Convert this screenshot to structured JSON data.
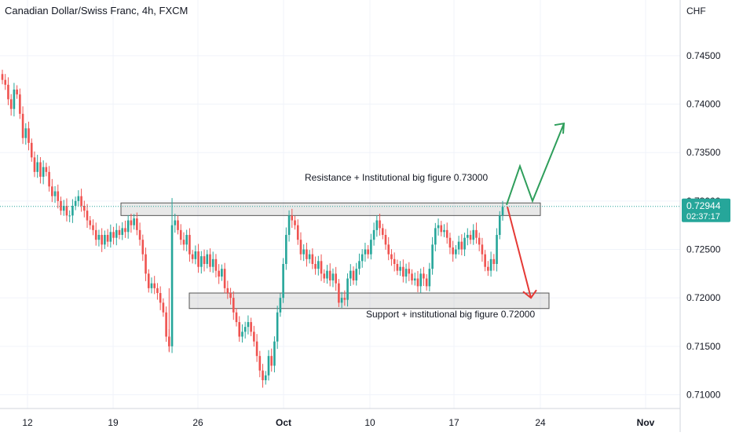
{
  "chart_data": {
    "type": "candlestick",
    "title": "Canadian Dollar/Swiss Franc, 4h, FXCM",
    "currency_label": "CHF",
    "y_ticks": [
      "0.74500",
      "0.74000",
      "0.73500",
      "0.73000",
      "0.72500",
      "0.72000",
      "0.71500",
      "0.71000"
    ],
    "y_tick_values": [
      0.745,
      0.74,
      0.735,
      0.73,
      0.725,
      0.72,
      0.715,
      0.71
    ],
    "x_ticks": [
      "12",
      "19",
      "26",
      "Oct",
      "10",
      "17",
      "24",
      "Nov"
    ],
    "ylim": [
      0.7085,
      0.7488
    ],
    "current_price": "0.72944",
    "countdown": "02:37:17",
    "annotations": {
      "resistance": "Resistance + Institutional big figure 0.73000",
      "support": "Support + institutional big figure 0.72000"
    },
    "zones": {
      "resistance": [
        0.7285,
        0.7298
      ],
      "support": [
        0.7189,
        0.7205
      ]
    },
    "scenario_up": [
      0.7296,
      0.7336,
      0.73,
      0.738
    ],
    "scenario_down": [
      0.7294,
      0.72
    ],
    "colors": {
      "up": "#26a69a",
      "down": "#ef5350",
      "grid": "#f0f3fa",
      "price_line": "#26a69a",
      "text": "#131722"
    },
    "series": [
      0.7425,
      0.742,
      0.7405,
      0.7395,
      0.7415,
      0.741,
      0.739,
      0.7365,
      0.7375,
      0.736,
      0.7345,
      0.733,
      0.734,
      0.7325,
      0.7335,
      0.733,
      0.7315,
      0.7305,
      0.731,
      0.73,
      0.729,
      0.7295,
      0.7285,
      0.7285,
      0.7295,
      0.73,
      0.7305,
      0.7295,
      0.729,
      0.728,
      0.7275,
      0.727,
      0.726,
      0.7265,
      0.7255,
      0.7265,
      0.7258,
      0.7268,
      0.7262,
      0.727,
      0.7265,
      0.7272,
      0.7268,
      0.728,
      0.7275,
      0.7282,
      0.727,
      0.726,
      0.7245,
      0.7225,
      0.721,
      0.7215,
      0.721,
      0.7205,
      0.7195,
      0.7185,
      0.716,
      0.715,
      0.7275,
      0.728,
      0.727,
      0.726,
      0.7255,
      0.7265,
      0.7245,
      0.724,
      0.7248,
      0.7232,
      0.7243,
      0.7235,
      0.7245,
      0.7232,
      0.724,
      0.7228,
      0.7222,
      0.723,
      0.721,
      0.7205,
      0.72,
      0.7185,
      0.7175,
      0.716,
      0.7165,
      0.717,
      0.7175,
      0.7165,
      0.7155,
      0.714,
      0.7125,
      0.7115,
      0.712,
      0.714,
      0.713,
      0.7155,
      0.7185,
      0.72,
      0.7235,
      0.7265,
      0.7285,
      0.728,
      0.7275,
      0.726,
      0.7245,
      0.725,
      0.724,
      0.7245,
      0.7235,
      0.723,
      0.7238,
      0.7225,
      0.722,
      0.7228,
      0.7218,
      0.7225,
      0.7215,
      0.7195,
      0.72,
      0.7198,
      0.722,
      0.7228,
      0.7218,
      0.723,
      0.7238,
      0.7245,
      0.725,
      0.7245,
      0.726,
      0.727,
      0.728,
      0.7272,
      0.7265,
      0.7255,
      0.7245,
      0.724,
      0.7235,
      0.7228,
      0.7232,
      0.7222,
      0.723,
      0.7225,
      0.7218,
      0.722,
      0.7212,
      0.7225,
      0.722,
      0.7212,
      0.723,
      0.7255,
      0.7272,
      0.7275,
      0.7268,
      0.727,
      0.7262,
      0.7252,
      0.7245,
      0.725,
      0.7258,
      0.725,
      0.7262,
      0.7265,
      0.726,
      0.727,
      0.7262,
      0.7255,
      0.7245,
      0.7232,
      0.7228,
      0.724,
      0.7235,
      0.7265,
      0.7285,
      0.7294
    ]
  }
}
